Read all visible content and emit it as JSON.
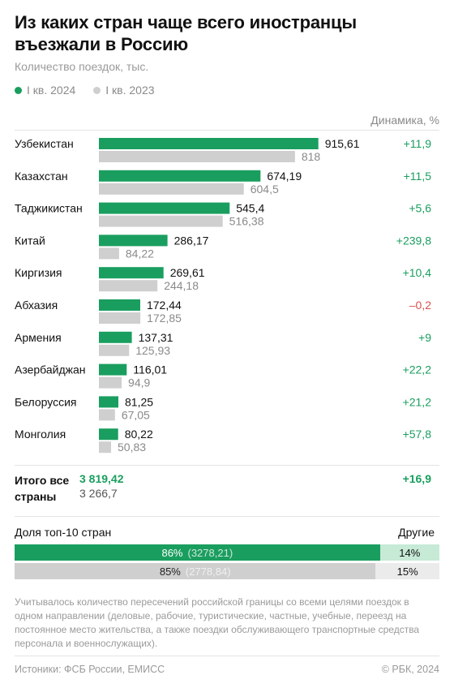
{
  "chart_data": {
    "type": "bar",
    "title": "Из каких стран чаще всего иностранцы въезжали в Россию",
    "subtitle": "Количество поездок, тыс.",
    "dynamics_header": "Динамика, %",
    "series": [
      {
        "name": "I кв. 2024",
        "color": "#1a9e5f"
      },
      {
        "name": "I кв. 2023",
        "color": "#cfcfcf"
      }
    ],
    "categories": [
      "Узбекистан",
      "Казахстан",
      "Таджикистан",
      "Китай",
      "Киргизия",
      "Абхазия",
      "Армения",
      "Азербайджан",
      "Белоруссия",
      "Монголия"
    ],
    "values_2024": [
      915.61,
      674.19,
      545.4,
      286.17,
      269.61,
      172.44,
      137.31,
      116.01,
      81.25,
      80.22
    ],
    "values_2023": [
      818,
      604.5,
      516.38,
      84.22,
      244.18,
      172.85,
      125.93,
      94.9,
      67.05,
      50.83
    ],
    "labels_2024": [
      "915,61",
      "674,19",
      "545,4",
      "286,17",
      "269,61",
      "172,44",
      "137,31",
      "116,01",
      "81,25",
      "80,22"
    ],
    "labels_2023": [
      "818",
      "604,5",
      "516,38",
      "84,22",
      "244,18",
      "172,85",
      "125,93",
      "94,9",
      "67,05",
      "50,83"
    ],
    "dynamics": [
      "+11,9",
      "+11,5",
      "+5,6",
      "+239,8",
      "+10,4",
      "–0,2",
      "+9",
      "+22,2",
      "+21,2",
      "+57,8"
    ],
    "dynamics_values": [
      11.9,
      11.5,
      5.6,
      239.8,
      10.4,
      -0.2,
      9,
      22.2,
      21.2,
      57.8
    ],
    "positive_color": "#1a9e5f",
    "negative_color": "#d9534f",
    "xlim": [
      0,
      920
    ]
  },
  "totals": {
    "label": "Итого все страны",
    "value_2024": "3 819,42",
    "value_2023": "3 266,7",
    "dynamics": "+16,9"
  },
  "share": {
    "label": "Доля топ-10 стран",
    "other_label": "Другие",
    "row_2024": {
      "share": 86,
      "percent": "86%",
      "value": "(3278,21)",
      "other": "14%"
    },
    "row_2023": {
      "share": 85,
      "percent": "85%",
      "value": "(2778,84)",
      "other": "15%"
    }
  },
  "note": "Учитывалось количество пересечений российской границы со всеми целями поездок в одном направлении (деловые, рабочие, туристические, частные, учебные, переезд на постоянное место жительства, а также поездки обслуживающего транспортные средства персонала и военнослужащих).",
  "footer": {
    "sources": "Истоники: ФСБ России, ЕМИСС",
    "copyright": "© РБК, 2024"
  },
  "colors": {
    "green": "#1a9e5f",
    "gray": "#cfcfcf",
    "light_green": "#c6ead6",
    "light_gray": "#ebebeb"
  }
}
